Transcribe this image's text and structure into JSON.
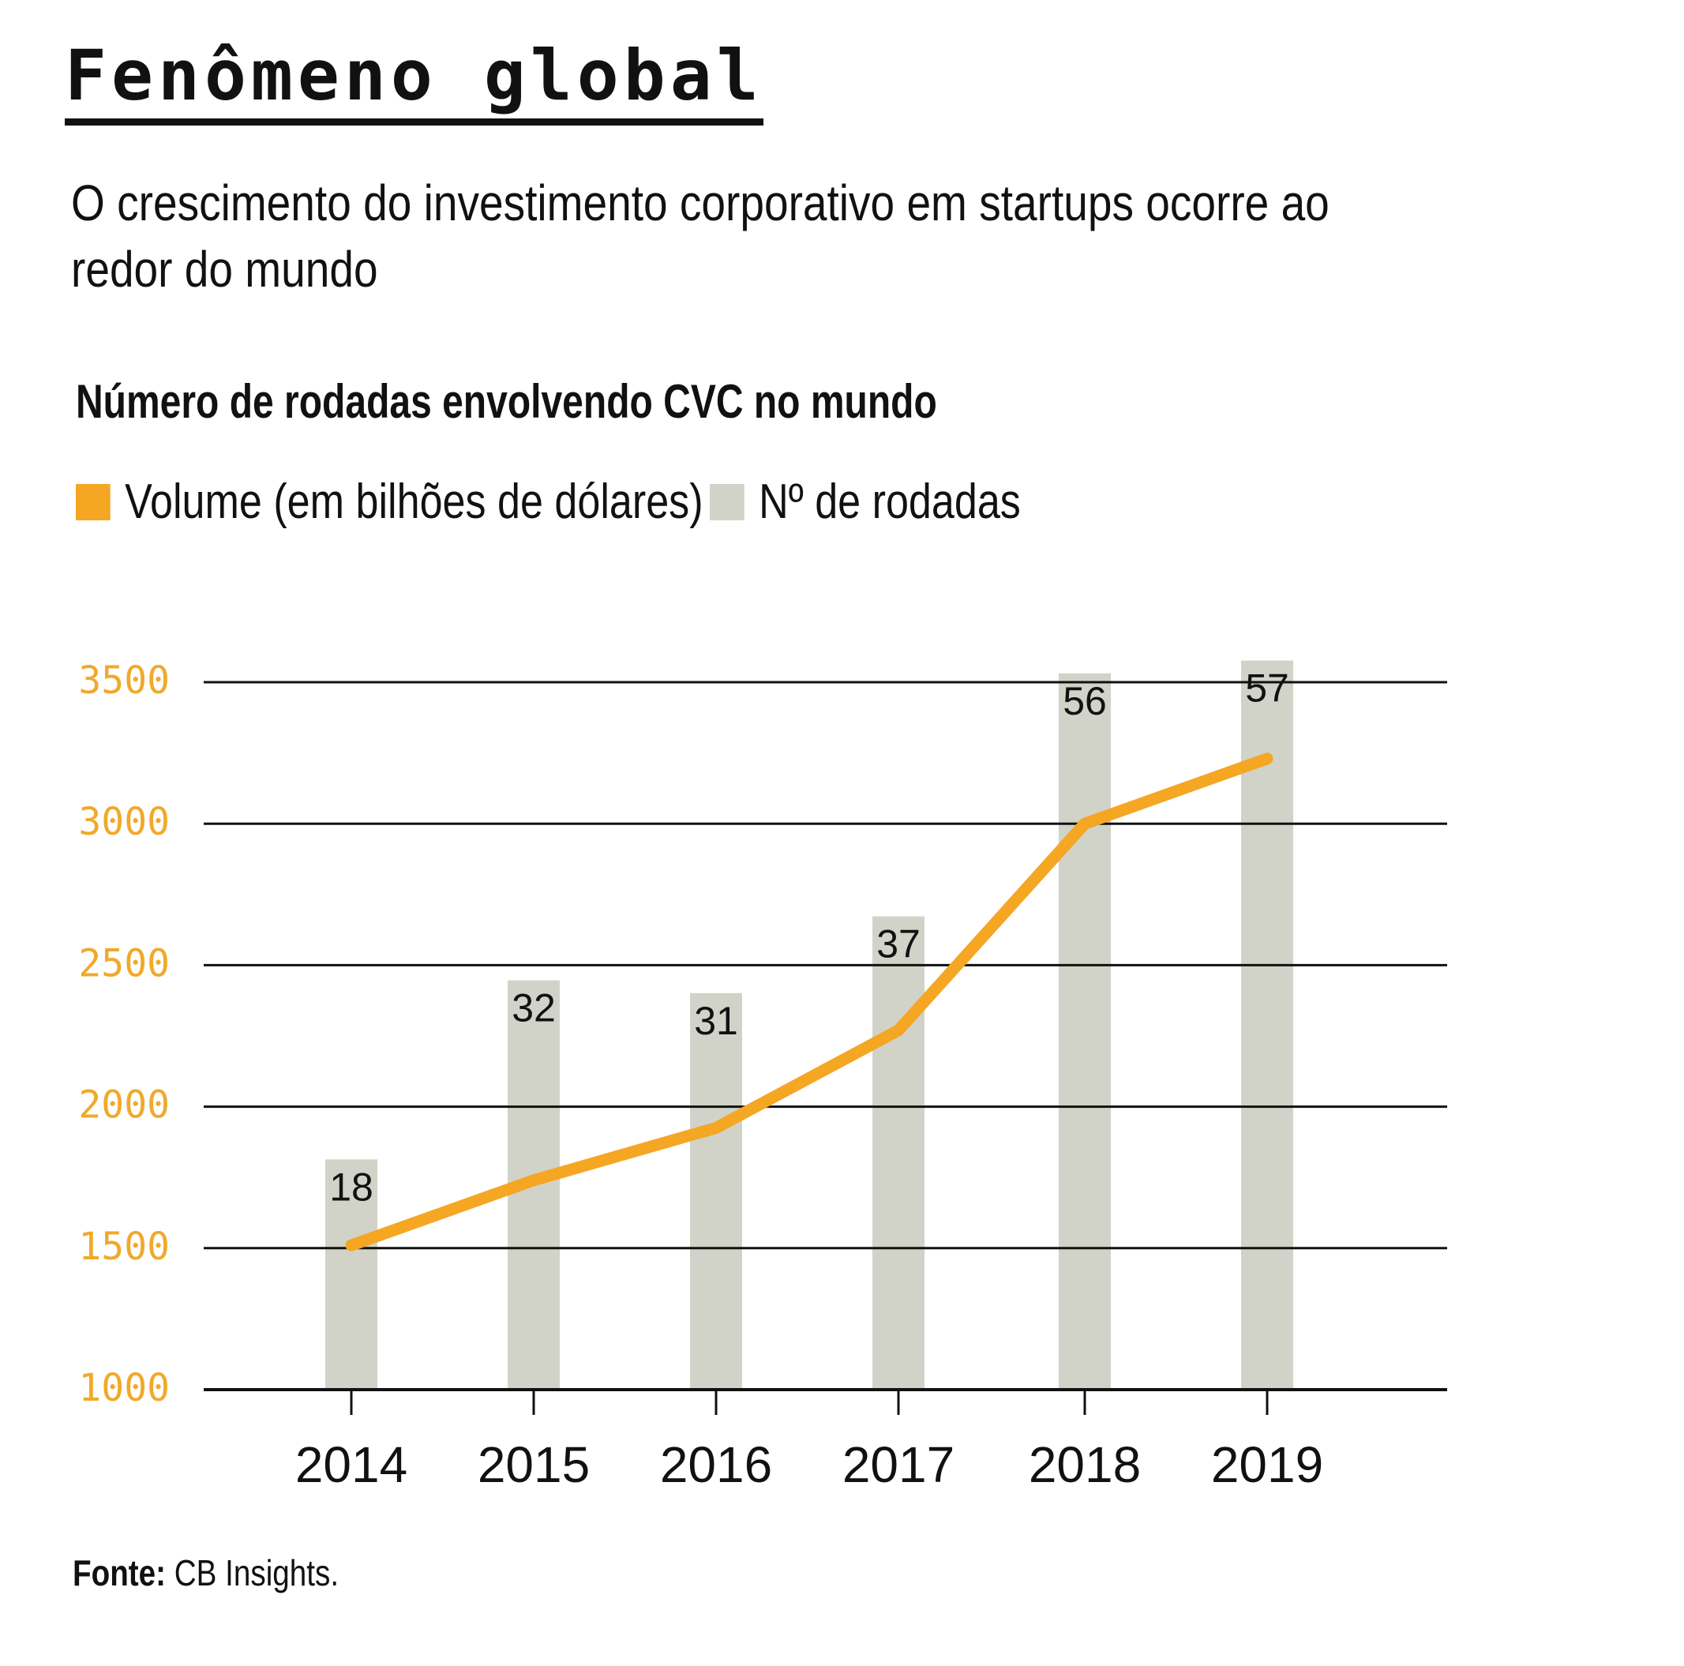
{
  "header": {
    "title": "Fenômeno global",
    "subtitle": "O crescimento do investimento corporativo em startups ocorre ao redor do mundo"
  },
  "legend": {
    "items": [
      {
        "label": "Volume (em bilhões de dólares)",
        "color": "#f5a623"
      },
      {
        "label": "Nº de rodadas",
        "color": "#d1d3c9"
      }
    ]
  },
  "source": {
    "prefix": "Fonte:",
    "text": "CB Insights."
  },
  "chart_data": {
    "type": "bar",
    "title": "Número de rodadas envolvendo CVC no mundo",
    "categories": [
      "2014",
      "2015",
      "2016",
      "2017",
      "2018",
      "2019"
    ],
    "series": [
      {
        "name": "Nº de rodadas",
        "type": "bar",
        "color": "#d1d3c9",
        "values": [
          18,
          32,
          31,
          37,
          56,
          57
        ],
        "data_labels": [
          "18",
          "32",
          "31",
          "37",
          "56",
          "57"
        ]
      },
      {
        "name": "Volume (em bilhões de dólares)",
        "type": "line",
        "color": "#f5a623",
        "values": [
          1510,
          1740,
          1925,
          2270,
          3000,
          3230
        ]
      }
    ],
    "yaxis": {
      "ticks": [
        "1000",
        "1500",
        "2000",
        "2500",
        "3000",
        "3500"
      ],
      "ylim": [
        1000,
        3500
      ],
      "tick_color": "#f0a92b"
    },
    "bar_scale_max": 59,
    "grid": true,
    "xlabel": "",
    "ylabel": "",
    "legend_position": "top-left"
  }
}
